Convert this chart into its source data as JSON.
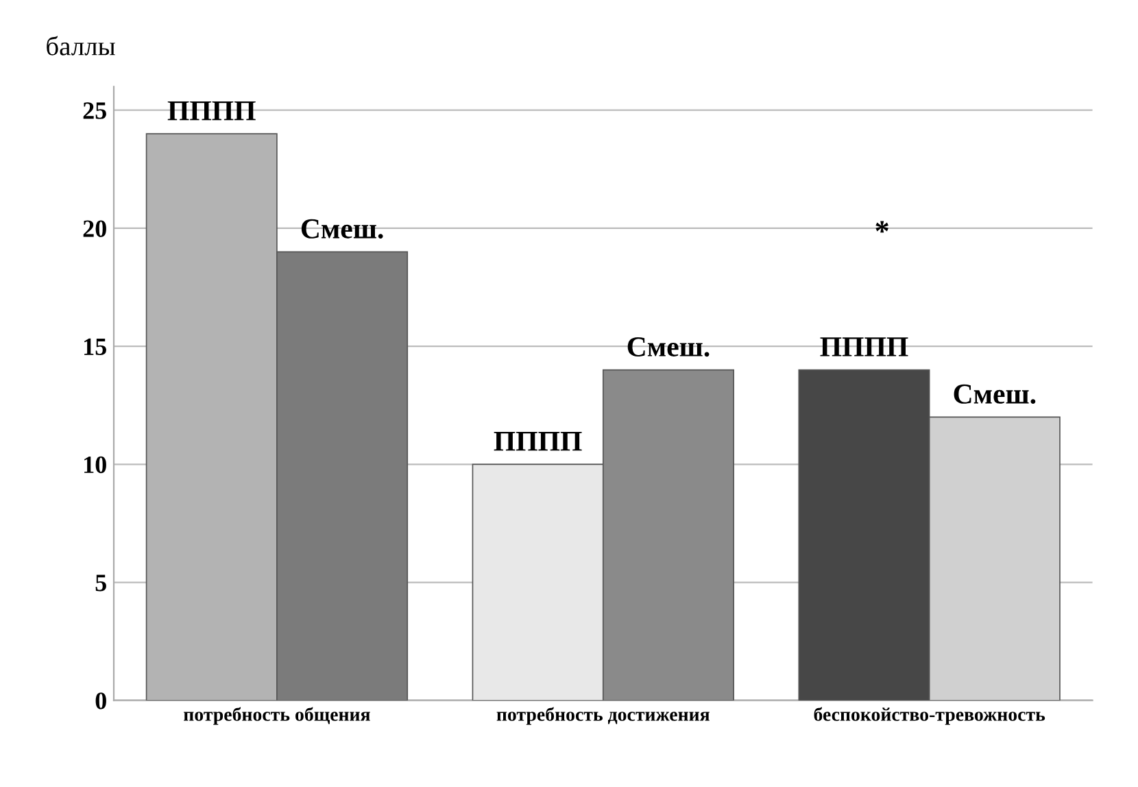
{
  "chart_data": {
    "type": "bar",
    "ylabel": "баллы",
    "categories": [
      "потребность общения",
      "потребность достижения",
      "беспокойство-тревожность"
    ],
    "series": [
      {
        "name": "ПППП",
        "colors": [
          "#b3b3b3",
          "#e8e8e8",
          "#474747"
        ],
        "values": [
          24,
          10,
          14
        ]
      },
      {
        "name": "Смеш.",
        "colors": [
          "#7b7b7b",
          "#8a8a8a",
          "#d0d0d0"
        ],
        "values": [
          19,
          14,
          12
        ]
      }
    ],
    "ylim": [
      0,
      26
    ],
    "yticks": [
      0,
      5,
      10,
      15,
      20,
      25
    ],
    "grid": "y",
    "annotations": [
      "*"
    ]
  }
}
